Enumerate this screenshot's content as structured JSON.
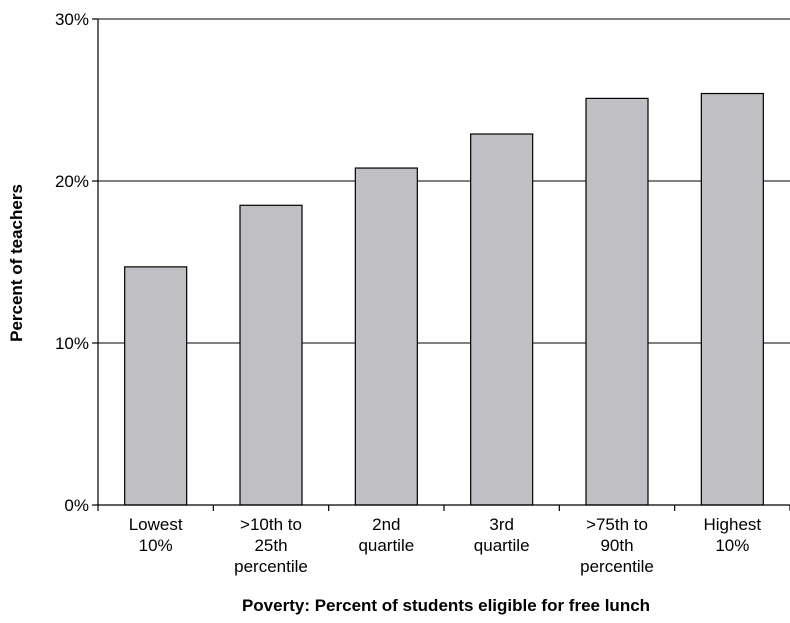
{
  "chart_data": {
    "type": "bar",
    "title": "",
    "xlabel": "Poverty: Percent of students eligible for free lunch",
    "ylabel": "Percent of teachers",
    "categories": [
      [
        "Lowest",
        "10%"
      ],
      [
        ">10th to",
        "25th",
        "percentile"
      ],
      [
        "2nd",
        "quartile"
      ],
      [
        "3rd",
        "quartile"
      ],
      [
        ">75th to",
        "90th",
        "percentile"
      ],
      [
        "Highest",
        "10%"
      ]
    ],
    "values": [
      14.7,
      18.5,
      20.8,
      22.9,
      25.1,
      25.4
    ],
    "ylim": [
      0,
      30
    ],
    "yticks": [
      0,
      10,
      20,
      30
    ],
    "ytick_labels": [
      "0%",
      "10%",
      "20%",
      "30%"
    ],
    "grid": true,
    "colors": {
      "bar_fill": "#bfbfc4",
      "bar_stroke": "#000000",
      "grid": "#000000"
    }
  }
}
